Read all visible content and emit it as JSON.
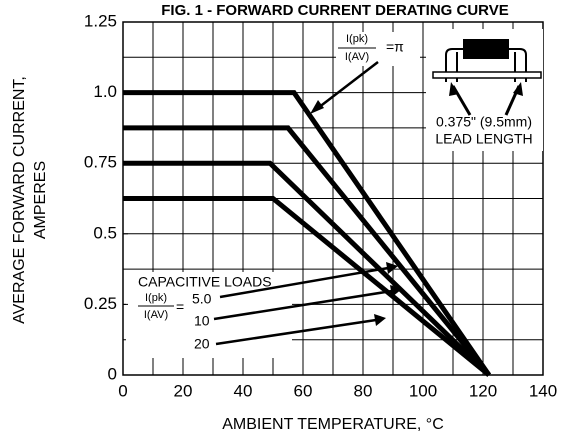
{
  "chart_data": {
    "type": "line",
    "title": "FIG. 1 - FORWARD CURRENT DERATING CURVE",
    "xlabel": "AMBIENT TEMPERATURE, °C",
    "ylabel": [
      "AVERAGE FORWARD CURRENT,",
      "AMPERES"
    ],
    "xlim": [
      0,
      140
    ],
    "ylim": [
      0,
      1.25
    ],
    "xticks": [
      0,
      20,
      40,
      60,
      80,
      100,
      120,
      140
    ],
    "yticks": [
      0,
      0.25,
      0.5,
      0.75,
      {
        "value": 1,
        "label": "1.0"
      },
      1.25
    ],
    "xgrid": [
      10,
      20,
      30,
      40,
      50,
      60,
      70,
      80,
      90,
      100,
      110,
      120,
      130
    ],
    "ygrid": [
      0.125,
      0.25,
      0.375,
      0.5,
      0.625,
      0.75,
      0.875,
      1,
      1.125
    ],
    "color": "#000000",
    "series": [
      {
        "x": [
          0,
          57,
          122
        ],
        "values": [
          1,
          1,
          0
        ]
      },
      {
        "x": [
          0,
          55,
          122
        ],
        "values": [
          0.875,
          0.875,
          0
        ]
      },
      {
        "x": [
          0,
          49,
          122
        ],
        "values": [
          0.75,
          0.75,
          0
        ]
      },
      {
        "x": [
          0,
          50,
          122
        ],
        "values": [
          0.625,
          0.625,
          0
        ]
      }
    ],
    "annotations": {
      "ratio_top": {
        "num": "I(pk)",
        "den": "I(AV)",
        "eq": "=π"
      },
      "lead": [
        "0.375\" (9.5mm)",
        "LEAD LENGTH"
      ],
      "loads_title": "CAPACITIVE LOADS",
      "ratio_loads": {
        "num": "I(pk)",
        "den": "I(AV)",
        "eq": "="
      },
      "loads": [
        "5.0",
        "10",
        "20"
      ]
    }
  }
}
